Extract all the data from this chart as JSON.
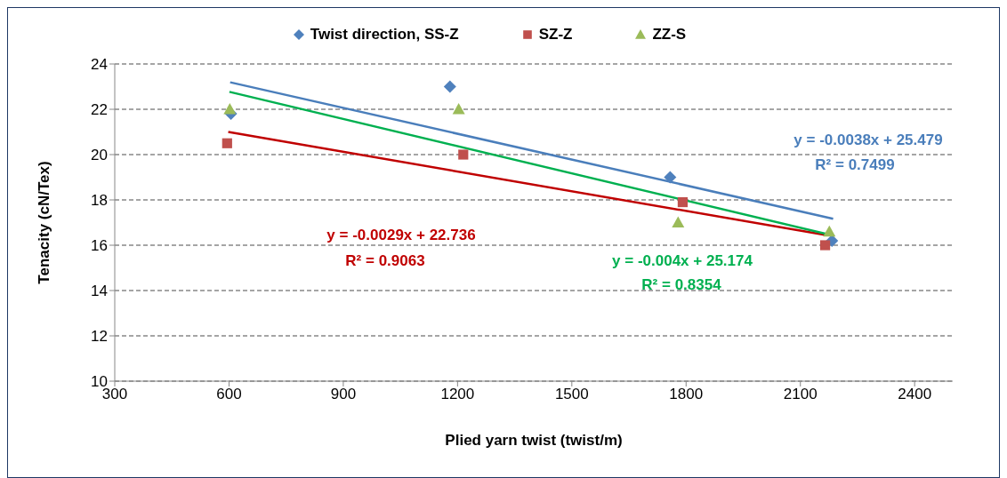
{
  "chart_data": {
    "type": "scatter",
    "xlabel": "Plied yarn twist (twist/m)",
    "ylabel": "Tenacity (cN/Tex)",
    "xlim": [
      300,
      2500
    ],
    "xticks": [
      300,
      600,
      900,
      1200,
      1500,
      1800,
      2100,
      2400
    ],
    "ylim": [
      10,
      24
    ],
    "yticks": [
      10,
      12,
      14,
      16,
      18,
      20,
      22,
      24
    ],
    "grid": "y",
    "legend": "top",
    "series": [
      {
        "name": "Twist direction, SS-Z",
        "color": "#4f81bd",
        "marker": "diamond",
        "x": [
          605,
          1180,
          1758,
          2183
        ],
        "values": [
          21.8,
          23.0,
          19.0,
          16.2
        ]
      },
      {
        "name": "SZ-Z",
        "color": "#c0504d",
        "marker": "square",
        "x": [
          595,
          1215,
          1791,
          2165
        ],
        "values": [
          20.5,
          20.0,
          17.9,
          16.0
        ]
      },
      {
        "name": "ZZ-S",
        "color": "#9bbb59",
        "marker": "triangle",
        "x": [
          602,
          1203,
          1779,
          2176
        ],
        "values": [
          22.0,
          22.0,
          17.0,
          16.6
        ]
      },
      {
        "type": "line",
        "color": "#4a7ebb",
        "x": [
          603,
          2186
        ],
        "values": [
          23.19,
          17.17
        ]
      },
      {
        "type": "line",
        "color": "#c00000",
        "x": [
          598,
          2170
        ],
        "values": [
          21.0,
          16.44
        ]
      },
      {
        "type": "line",
        "color": "#00b050",
        "x": [
          601,
          2175
        ],
        "values": [
          22.77,
          16.47
        ]
      }
    ],
    "annotations": [
      "y = -0.0038x + 25.479",
      "R² = 0.7499",
      "y = -0.0029x + 22.736",
      "R² = 0.9063",
      "y = -0.004x + 25.174",
      "R² = 0.8354"
    ]
  }
}
